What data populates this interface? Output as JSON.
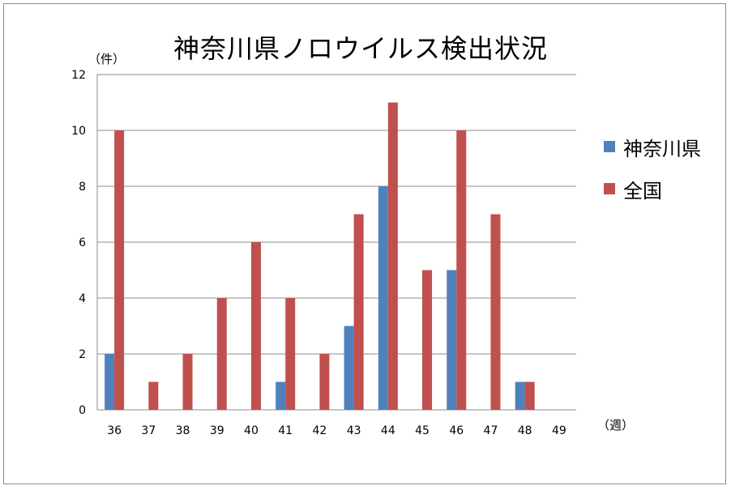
{
  "chart_data": {
    "type": "bar",
    "title": "神奈川県ノロウイルス検出状況",
    "ylabel": "（件）",
    "xlabel": "（週）",
    "categories": [
      "36",
      "37",
      "38",
      "39",
      "40",
      "41",
      "42",
      "43",
      "44",
      "45",
      "46",
      "47",
      "48",
      "49"
    ],
    "ylim": [
      0,
      12
    ],
    "yticks": [
      0,
      2,
      4,
      6,
      8,
      10,
      12
    ],
    "grid": true,
    "legend_position": "right",
    "series": [
      {
        "name": "神奈川県",
        "color": "#4f81bd",
        "values": [
          2,
          0,
          0,
          0,
          0,
          1,
          0,
          3,
          8,
          0,
          5,
          0,
          1,
          0
        ]
      },
      {
        "name": "全国",
        "color": "#c0504d",
        "values": [
          10,
          1,
          2,
          4,
          6,
          4,
          2,
          7,
          11,
          5,
          10,
          7,
          1,
          0
        ]
      }
    ]
  }
}
